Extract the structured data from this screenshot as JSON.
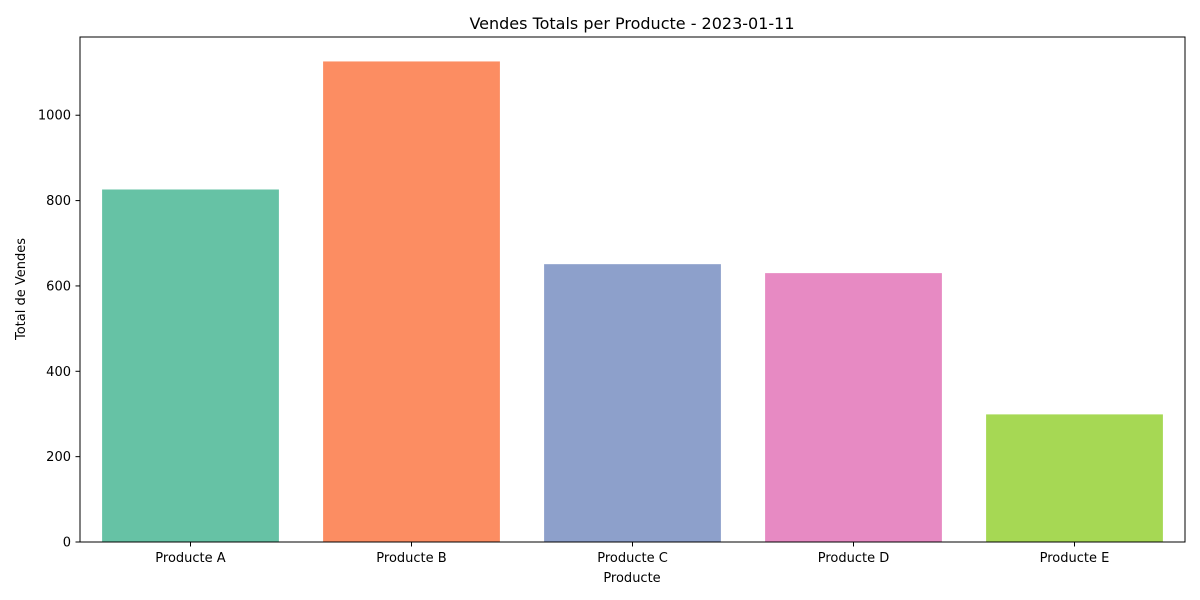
{
  "chart_data": {
    "type": "bar",
    "title": "Vendes Totals per Producte - 2023-01-11",
    "xlabel": "Producte",
    "ylabel": "Total de Vendes",
    "categories": [
      "Producte A",
      "Producte B",
      "Producte C",
      "Producte D",
      "Producte E"
    ],
    "values": [
      826,
      1126,
      651,
      630,
      299
    ],
    "colors": [
      "#66c2a5",
      "#fc8d62",
      "#8da0cb",
      "#e78ac3",
      "#a6d854"
    ],
    "ylim": [
      0,
      1183.3
    ],
    "yticks": [
      0,
      200,
      400,
      600,
      800,
      1000
    ],
    "grid": false,
    "legend": "none"
  }
}
